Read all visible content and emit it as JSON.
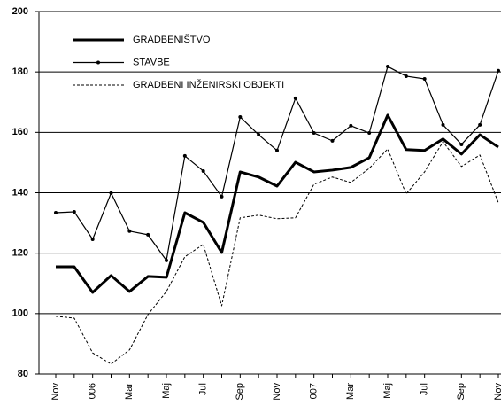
{
  "chart_data": {
    "type": "line",
    "categories": [
      "Nov",
      null,
      "006",
      null,
      "Mar",
      null,
      "Maj",
      null,
      "Jul",
      null,
      "Sep",
      null,
      "Nov",
      null,
      "007",
      null,
      "Mar",
      null,
      "Maj",
      null,
      "Jul",
      null,
      "Sep",
      null,
      "Nov"
    ],
    "series": [
      {
        "name": "GRADBENIŠTVO",
        "color": "#000000",
        "style": "thick",
        "values": [
          115.5,
          115.5,
          107,
          112.6,
          107.3,
          112.3,
          112,
          133.4,
          130.2,
          120.2,
          146.9,
          145.2,
          142.2,
          150.1,
          146.9,
          147.5,
          148.4,
          151.6,
          165.7,
          154.3,
          154,
          157.8,
          152.8,
          159.2,
          155.1
        ]
      },
      {
        "name": "STAVBE",
        "color": "#000000",
        "style": "marker",
        "values": [
          133.4,
          133.7,
          124.6,
          139.9,
          127.3,
          126.1,
          117.6,
          152.2,
          147.2,
          138.7,
          165.1,
          159.2,
          154,
          171.3,
          159.8,
          157.2,
          162.2,
          159.8,
          181.8,
          178.6,
          177.7,
          162.5,
          156,
          162.5,
          180.4
        ]
      },
      {
        "name": "GRADBENI INŽENIRSKI OBJEKTI",
        "color": "#000000",
        "style": "dashed",
        "values": [
          99.1,
          98.5,
          87,
          83.3,
          88,
          99.7,
          107.3,
          118.8,
          122.9,
          102.6,
          131.7,
          132.6,
          131.4,
          131.7,
          142.8,
          145.2,
          143.4,
          148.1,
          154.5,
          139.6,
          146.9,
          156.9,
          148.7,
          152.5,
          136.7
        ]
      }
    ],
    "ylim": [
      80,
      200
    ],
    "yticks": [
      80,
      100,
      120,
      140,
      160,
      180,
      200
    ],
    "grid": true,
    "legend": "top-left"
  }
}
